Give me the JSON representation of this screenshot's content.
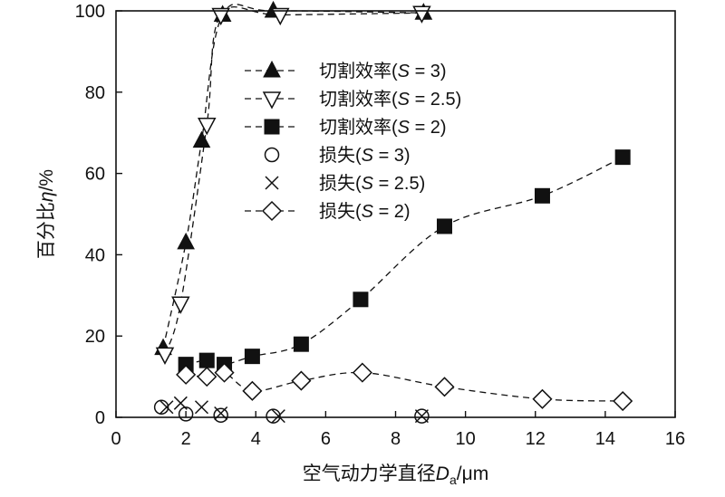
{
  "chart_data": {
    "type": "scatter",
    "xlabel": "空气动力学直径D_a/μm",
    "xlabel_parts": {
      "main": "空气动力学直径",
      "var": "D",
      "sub": "a",
      "unit": "/μm"
    },
    "ylabel": "百分比η/%",
    "ylabel_parts": {
      "main": "百分比",
      "var": "η",
      "unit": "/%"
    },
    "xlim": [
      0,
      16
    ],
    "ylim": [
      0,
      100
    ],
    "xticks": [
      0,
      2,
      4,
      6,
      8,
      10,
      12,
      14,
      16
    ],
    "yticks": [
      0,
      20,
      40,
      60,
      80,
      100
    ],
    "grid": false,
    "legend_position": "upper-center",
    "series": [
      {
        "name": "切割效率(S = 3)",
        "marker": "triangle-up-filled",
        "dashed_line": true,
        "points": [
          [
            1.35,
            17
          ],
          [
            2.0,
            43
          ],
          [
            2.45,
            68
          ],
          [
            3.05,
            99
          ],
          [
            4.5,
            100
          ],
          [
            8.8,
            99.5
          ]
        ]
      },
      {
        "name": "切割效率(S = 2.5)",
        "marker": "triangle-down-open",
        "dashed_line": true,
        "points": [
          [
            1.4,
            15.5
          ],
          [
            1.85,
            28
          ],
          [
            2.6,
            72
          ],
          [
            3.0,
            99
          ],
          [
            4.7,
            99
          ],
          [
            8.75,
            99.5
          ]
        ]
      },
      {
        "name": "切割效率(S = 2)",
        "marker": "square-filled",
        "dashed_line": true,
        "points": [
          [
            2.0,
            13
          ],
          [
            2.6,
            14
          ],
          [
            3.1,
            13
          ],
          [
            3.9,
            15
          ],
          [
            5.3,
            18
          ],
          [
            7.0,
            29
          ],
          [
            9.4,
            47
          ],
          [
            12.2,
            54.5
          ],
          [
            14.5,
            64
          ]
        ]
      },
      {
        "name": "损失(S = 3)",
        "marker": "circle-open",
        "dashed_line": false,
        "points": [
          [
            1.3,
            2.5
          ],
          [
            2.0,
            0.8
          ],
          [
            3.0,
            0.5
          ],
          [
            4.5,
            0.3
          ],
          [
            8.75,
            0.3
          ]
        ]
      },
      {
        "name": "损失(S = 2.5)",
        "marker": "x",
        "dashed_line": false,
        "points": [
          [
            1.45,
            2.5
          ],
          [
            1.85,
            3.5
          ],
          [
            2.45,
            2.5
          ],
          [
            3.0,
            1.0
          ],
          [
            4.65,
            0.3
          ],
          [
            8.75,
            0.3
          ]
        ]
      },
      {
        "name": "损失(S = 2)",
        "marker": "diamond-open",
        "dashed_line": true,
        "points": [
          [
            2.0,
            10.5
          ],
          [
            2.6,
            10
          ],
          [
            3.1,
            11
          ],
          [
            3.9,
            6.5
          ],
          [
            5.3,
            9
          ],
          [
            7.05,
            11
          ],
          [
            9.4,
            7.5
          ],
          [
            12.2,
            4.5
          ],
          [
            14.5,
            4
          ]
        ]
      }
    ]
  }
}
